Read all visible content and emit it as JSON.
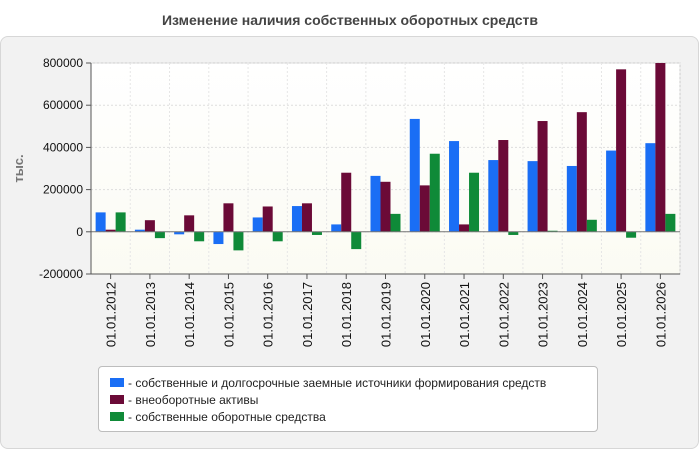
{
  "chart_data": {
    "type": "bar",
    "title": "Изменение наличия собственных оборотных средств",
    "ylabel": "тыс.",
    "xlabel": "",
    "ylim": [
      -200000,
      800000
    ],
    "yticks": [
      -200000,
      0,
      200000,
      400000,
      600000,
      800000
    ],
    "ytick_labels": [
      "-200000",
      "0",
      "200000",
      "400000",
      "600000",
      "800000"
    ],
    "grid": true,
    "legend_position": "bottom",
    "categories": [
      "01.01.2012",
      "01.01.2013",
      "01.01.2014",
      "01.01.2015",
      "01.01.2016",
      "01.01.2017",
      "01.01.2018",
      "01.01.2019",
      "01.01.2020",
      "01.01.2021",
      "01.01.2022",
      "01.01.2023",
      "01.01.2024",
      "01.01.2025",
      "01.01.2026"
    ],
    "series": [
      {
        "name": "собственные и долгосрочные заемные источники формирования средств",
        "color": "#1a6ef5",
        "values": [
          92000,
          10000,
          -12000,
          -58000,
          68000,
          122000,
          35000,
          265000,
          535000,
          430000,
          340000,
          335000,
          312000,
          385000,
          420000
        ]
      },
      {
        "name": "внеоборотные активы",
        "color": "#6b0a37",
        "values": [
          10000,
          55000,
          78000,
          135000,
          120000,
          135000,
          280000,
          237000,
          220000,
          35000,
          435000,
          525000,
          567000,
          770000,
          800000
        ]
      },
      {
        "name": "собственные оборотные средства",
        "color": "#0f8a38",
        "values": [
          92000,
          -30000,
          -45000,
          -88000,
          -45000,
          -15000,
          -82000,
          85000,
          370000,
          280000,
          -15000,
          5000,
          57000,
          -28000,
          85000
        ]
      }
    ]
  }
}
